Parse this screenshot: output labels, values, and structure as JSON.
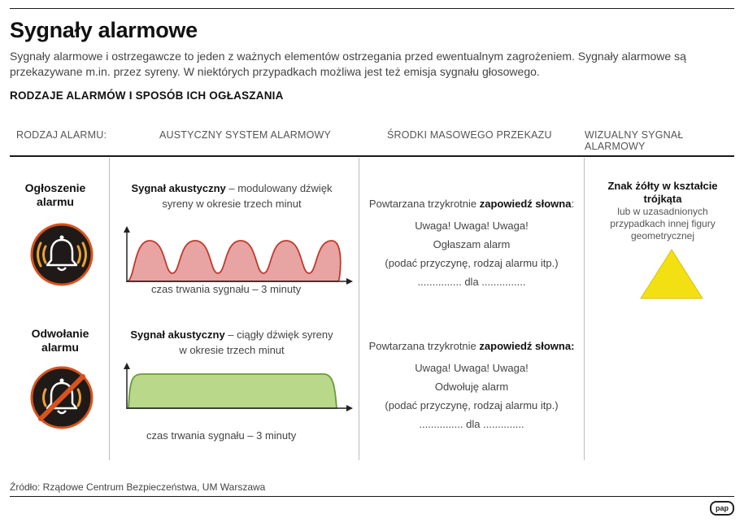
{
  "title": "Sygnały alarmowe",
  "lead": "Sygnały alarmowe i ostrzegawcze to jeden z ważnych elementów ostrzegania przed ewentualnym zagrożeniem. Sygnały alarmowe są przekazywane m.in. przez syreny. W niektórych przypadkach możliwa jest też emisja sygnału głosowego.",
  "subheading": "RODZAJE ALARMÓW I SPOSÓB ICH OGŁASZANIA",
  "columns": {
    "type": "RODZAJ ALARMU:",
    "acoustic": "AUSTYCZNY SYSTEM ALARMOWY",
    "media": "ŚRODKI MASOWEGO PRZEKAZU",
    "visual": "WIZUALNY SYGNAŁ ALARMOWY"
  },
  "alarm_on": {
    "label_l1": "Ogłoszenie",
    "label_l2": "alarmu",
    "signal_bold": "Sygnał akustyczny",
    "signal_rest": " –  modulowany dźwięk",
    "signal_l2": "syreny w okresie trzech minut",
    "caption": "czas trwania sygnału – 3 minuty",
    "media_intro": "Powtarzana trzykrotnie ",
    "media_bold": "zapowiedź słowna",
    "media_colon": ":",
    "media_l1": "Uwaga! Uwaga! Uwaga!",
    "media_l2": "Ogłaszam alarm",
    "media_l3": "(podać przyczynę, rodzaj alarmu itp.)",
    "media_l4": "............... dla ...............",
    "icon": "bell-icon"
  },
  "alarm_off": {
    "label_l1": "Odwołanie",
    "label_l2": "alarmu",
    "signal_bold": "Sygnał akustyczny",
    "signal_rest": " –  ciągły dźwięk syreny",
    "signal_l2": "w okresie trzech minut",
    "caption": "czas trwania sygnału – 3 minuty",
    "media_intro": "Powtarzana trzykrotnie ",
    "media_bold": "zapowiedź słowna:",
    "media_l1": "Uwaga! Uwaga! Uwaga!",
    "media_l2": "Odwołuję alarm",
    "media_l3": "(podać przyczynę, rodzaj alarmu itp.)",
    "media_l4": "............... dla ..............",
    "icon": "bell-crossed-icon"
  },
  "visual": {
    "bold_l1": "Znak żółty w kształcie",
    "bold_l2": "trójkąta",
    "l3": "lub w uzasadnionych",
    "l4": "przypadkach innej figury",
    "l5": "geometrycznej"
  },
  "source": "Źródło: Rządowe Centrum Bezpieczeństwa, UM Warszawa",
  "logo": "pap",
  "colors": {
    "wave_fill": "#e8a3a3",
    "wave_stroke": "#c0392b",
    "steady_fill": "#b9d88a",
    "steady_stroke": "#6a9a3a",
    "icon_bg": "#1f1a17",
    "icon_ring": "#d9531e",
    "icon_glow": "#e8a23a",
    "triangle": "#f3e012"
  }
}
